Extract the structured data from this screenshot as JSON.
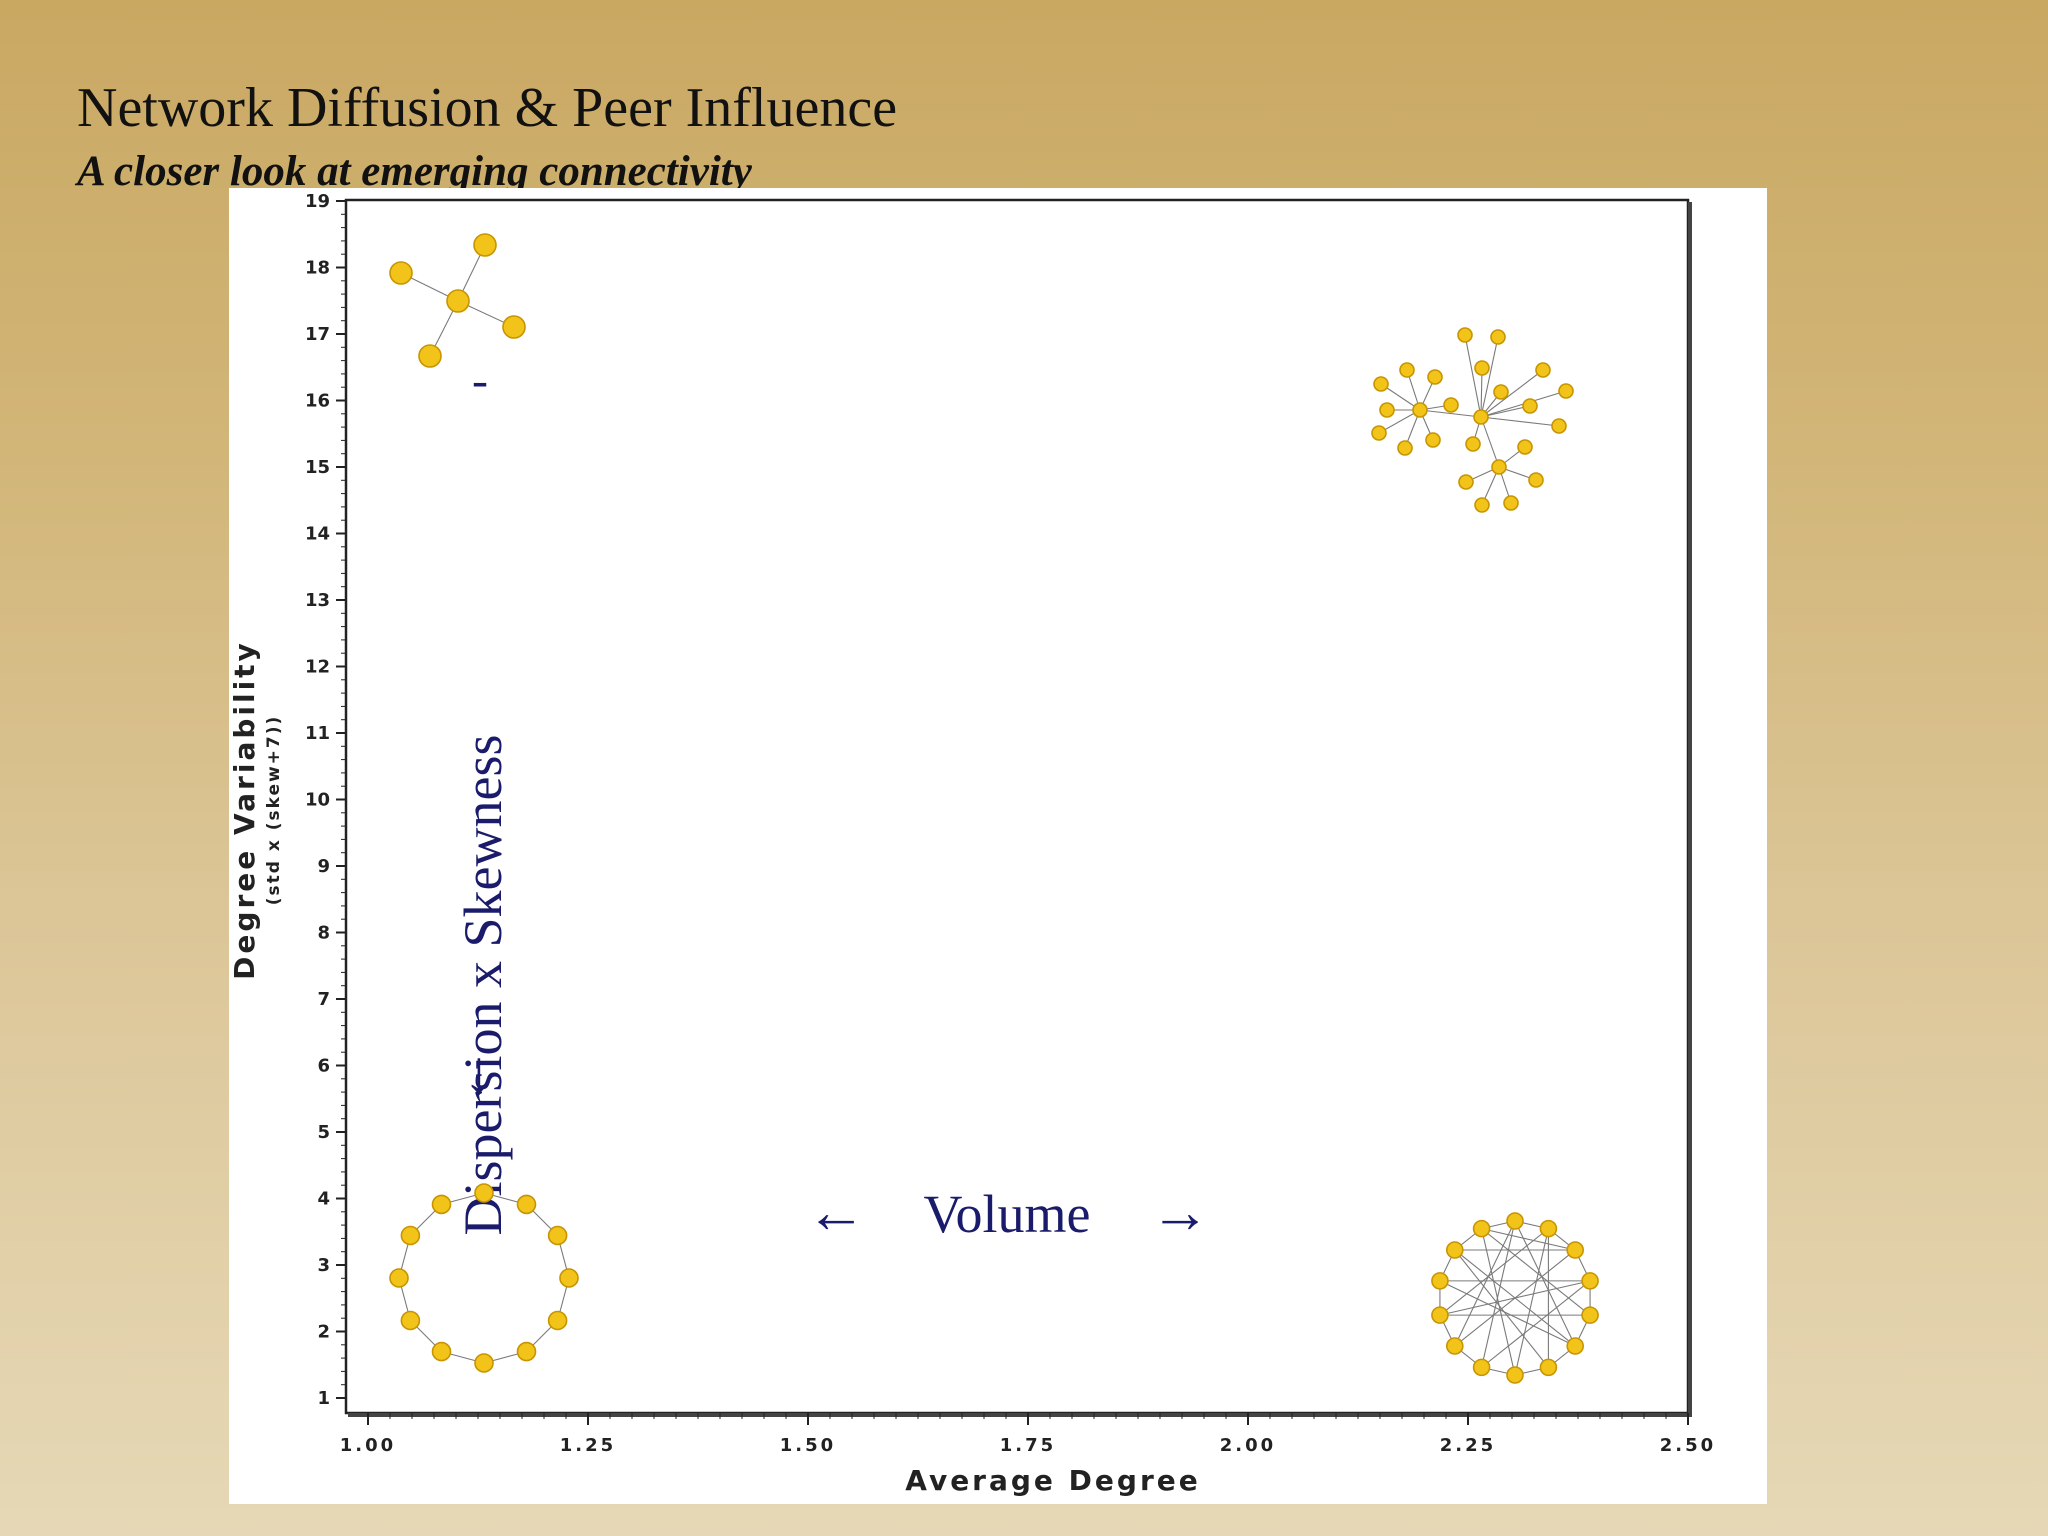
{
  "slide": {
    "title": "Network Diffusion & Peer Influence",
    "subtitle": "A closer look at emerging connectivity"
  },
  "chart_data": {
    "type": "scatter",
    "xlabel": "Average Degree",
    "ylabel": "Degree Variability",
    "ylabel_sub": "(std x (skew+7))",
    "xlim": [
      1.0,
      2.5
    ],
    "ylim": [
      1,
      19
    ],
    "x_ticks": [
      "1.00",
      "1.25",
      "1.50",
      "1.75",
      "2.00",
      "2.25",
      "2.50"
    ],
    "y_ticks": [
      "1",
      "2",
      "3",
      "4",
      "5",
      "6",
      "7",
      "8",
      "9",
      "10",
      "11",
      "12",
      "13",
      "14",
      "15",
      "16",
      "17",
      "18",
      "19"
    ],
    "annotations": {
      "vertical_arrow_label": "Dispersion x Skewness",
      "horizontal_arrow_label": "Volume",
      "arrow_left": "←",
      "arrow_right": "→",
      "arrow_down": "↓",
      "dash": "-"
    },
    "grid": false,
    "colors": {
      "node": "#f2c41a",
      "node_stroke": "#c89400",
      "annotation": "#1b1b6b"
    }
  }
}
